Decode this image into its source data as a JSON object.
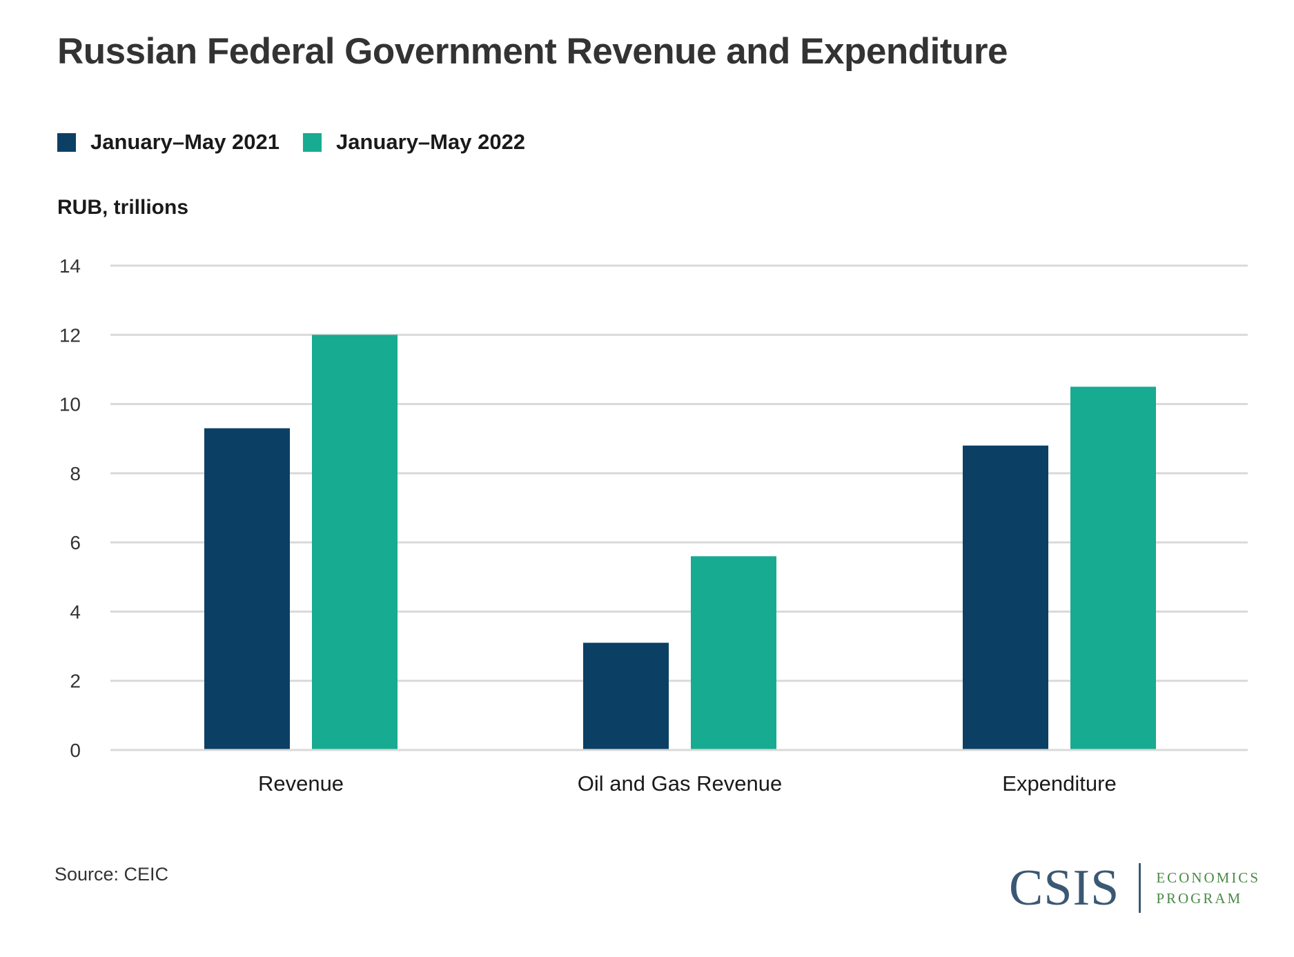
{
  "title": "Russian Federal Government Revenue and Expenditure",
  "legend": [
    {
      "label": "January–May 2021",
      "color": "#0b4064"
    },
    {
      "label": "January–May 2022",
      "color": "#17ab91"
    }
  ],
  "unit_label": "RUB, trillions",
  "source": "Source: CEIC",
  "logo": {
    "mark": "CSIS",
    "line1": "ECONOMICS",
    "line2": "PROGRAM"
  },
  "colors": {
    "gridline": "#d9d9d9",
    "axis_text": "#333333",
    "logo_blue": "#3b5873",
    "logo_green": "#4a8a46"
  },
  "chart_data": {
    "type": "bar",
    "title": "Russian Federal Government Revenue and Expenditure",
    "xlabel": "",
    "ylabel": "RUB, trillions",
    "ylim": [
      0,
      14
    ],
    "yticks": [
      0,
      2,
      4,
      6,
      8,
      10,
      12,
      14
    ],
    "grid": true,
    "legend_position": "top-left",
    "categories": [
      "Revenue",
      "Oil and Gas Revenue",
      "Expenditure"
    ],
    "series": [
      {
        "name": "January–May 2021",
        "color": "#0b4064",
        "values": [
          9.3,
          3.1,
          8.8
        ]
      },
      {
        "name": "January–May 2022",
        "color": "#17ab91",
        "values": [
          12.0,
          5.6,
          10.5
        ]
      }
    ]
  }
}
